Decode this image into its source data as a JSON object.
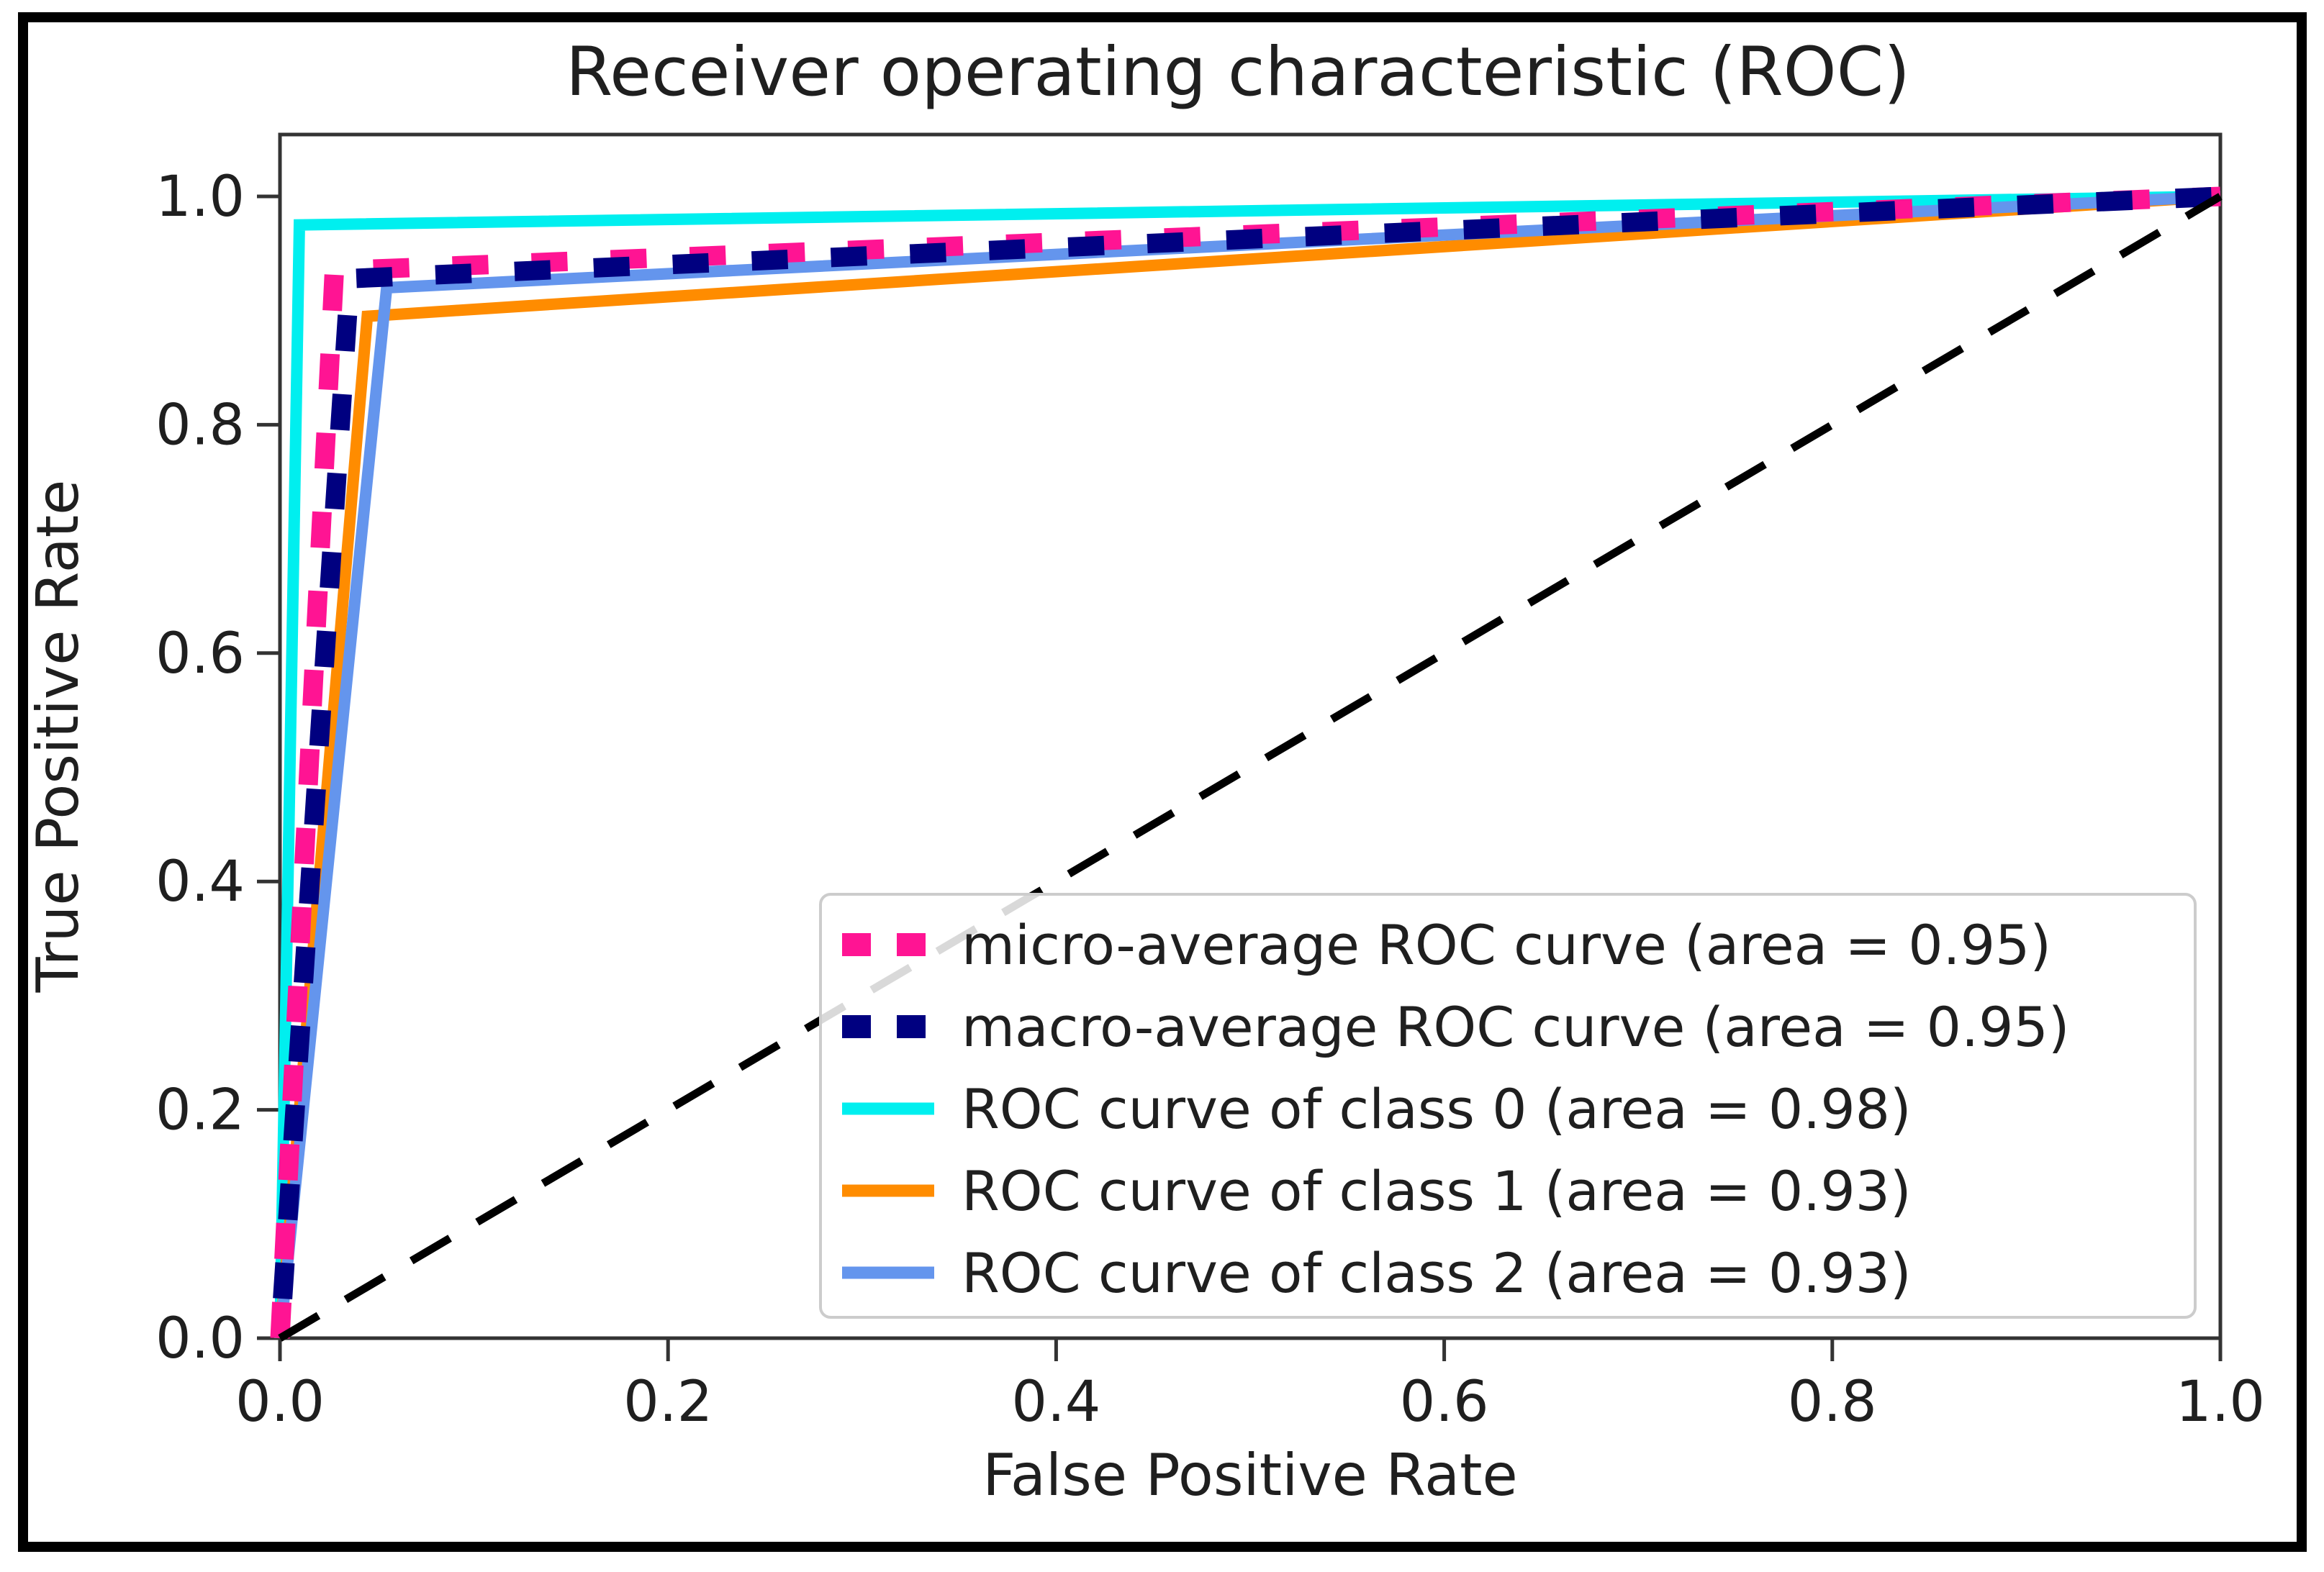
{
  "figure": {
    "background": "#ffffff",
    "border_color": "#000000",
    "axes_color": "#333333",
    "text_color": "#1f1f1f",
    "legend_border_color": "#cccccc",
    "legend_background": "#ffffff"
  },
  "chart_data": {
    "type": "line",
    "title": "Receiver operating characteristic (ROC)",
    "xlabel": "False Positive Rate",
    "ylabel": "True Positive Rate",
    "xlim": [
      0.0,
      1.0
    ],
    "ylim": [
      0.0,
      1.05
    ],
    "grid": false,
    "legend_position": "lower right",
    "x_ticks": [
      {
        "value": 0.0,
        "label": "0.0"
      },
      {
        "value": 0.2,
        "label": "0.2"
      },
      {
        "value": 0.4,
        "label": "0.4"
      },
      {
        "value": 0.6,
        "label": "0.6"
      },
      {
        "value": 0.8,
        "label": "0.8"
      },
      {
        "value": 1.0,
        "label": "1.0"
      }
    ],
    "y_ticks": [
      {
        "value": 0.0,
        "label": "0.0"
      },
      {
        "value": 0.2,
        "label": "0.2"
      },
      {
        "value": 0.4,
        "label": "0.4"
      },
      {
        "value": 0.6,
        "label": "0.6"
      },
      {
        "value": 0.8,
        "label": "0.8"
      },
      {
        "value": 1.0,
        "label": "1.0"
      }
    ],
    "series": [
      {
        "name": "micro-average ROC curve (area = 0.95)",
        "auc": 0.95,
        "color": "#ff1493",
        "line_style": "dotted",
        "points": [
          [
            0.0,
            0.0
          ],
          [
            0.028,
            0.935
          ],
          [
            1.0,
            1.0
          ]
        ]
      },
      {
        "name": "macro-average ROC curve (area = 0.95)",
        "auc": 0.95,
        "color": "#000080",
        "line_style": "dotted",
        "points": [
          [
            0.0,
            0.0
          ],
          [
            0.036,
            0.928
          ],
          [
            1.0,
            1.0
          ]
        ]
      },
      {
        "name": "ROC curve of class 0 (area = 0.98)",
        "auc": 0.98,
        "color": "#00efef",
        "line_style": "solid",
        "points": [
          [
            0.0,
            0.0
          ],
          [
            0.01,
            0.975
          ],
          [
            1.0,
            1.0
          ]
        ]
      },
      {
        "name": "ROC curve of class 1 (area = 0.93)",
        "auc": 0.93,
        "color": "#ff8c00",
        "line_style": "solid",
        "points": [
          [
            0.0,
            0.0
          ],
          [
            0.045,
            0.895
          ],
          [
            0.09,
            0.9
          ],
          [
            1.0,
            1.0
          ]
        ]
      },
      {
        "name": "ROC curve of class 2 (area = 0.93)",
        "auc": 0.93,
        "color": "#6495ed",
        "line_style": "solid",
        "points": [
          [
            0.0,
            0.0
          ],
          [
            0.055,
            0.92
          ],
          [
            1.0,
            1.0
          ]
        ]
      }
    ],
    "reference_line": {
      "name": "chance-diagonal",
      "color": "#000000",
      "line_style": "dashed",
      "points": [
        [
          0.0,
          0.0
        ],
        [
          1.0,
          1.0
        ]
      ]
    }
  }
}
